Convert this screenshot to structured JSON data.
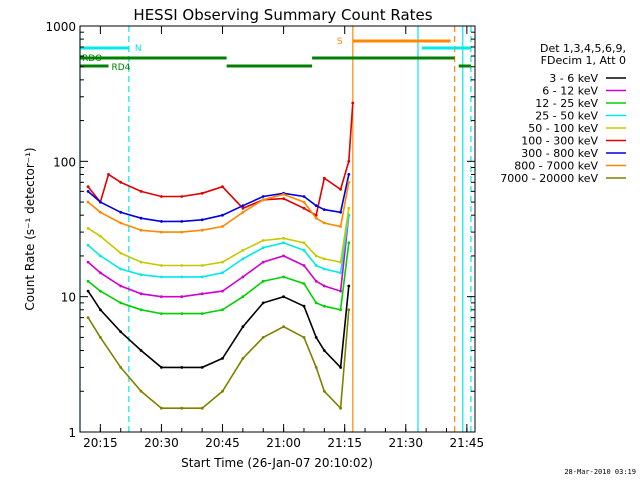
{
  "chart_data": {
    "type": "line",
    "title": "HESSI Observing Summary Count Rates",
    "xlabel": "Start Time (26-Jan-07 20:10:02)",
    "ylabel": "Count Rate (s⁻¹ detector⁻¹)",
    "yscale": "log",
    "ylim": [
      1,
      1000
    ],
    "xlim": [
      "20:10",
      "21:47"
    ],
    "x_ticks": [
      "20:15",
      "20:30",
      "20:45",
      "21:00",
      "21:15",
      "21:30",
      "21:45"
    ],
    "y_ticks": [
      "1",
      "10",
      "100",
      "1000"
    ],
    "grid": false,
    "legend_position": "right",
    "legend_header": [
      "Det 1,3,4,5,6,9,",
      "FDecim 1, Att 0"
    ],
    "footer_date": "28-Mar-2010 03:19",
    "series": [
      {
        "name": "3 - 6 keV",
        "color": "#000000",
        "x": [
          "20:12",
          "20:15",
          "20:20",
          "20:25",
          "20:30",
          "20:35",
          "20:40",
          "20:45",
          "20:50",
          "20:55",
          "21:00",
          "21:05",
          "21:08",
          "21:10",
          "21:14",
          "21:16"
        ],
        "values": [
          11,
          8,
          5.5,
          4,
          3,
          3,
          3,
          3.5,
          6,
          9,
          10,
          8.5,
          5,
          4,
          3,
          12
        ]
      },
      {
        "name": "6 - 12 keV",
        "color": "#d000d0",
        "x": [
          "20:12",
          "20:15",
          "20:20",
          "20:25",
          "20:30",
          "20:35",
          "20:40",
          "20:45",
          "20:50",
          "20:55",
          "21:00",
          "21:05",
          "21:08",
          "21:10",
          "21:14",
          "21:16"
        ],
        "values": [
          18,
          15,
          12,
          10.5,
          10,
          10,
          10.5,
          11,
          14,
          18,
          20,
          17,
          13,
          12,
          11,
          40
        ]
      },
      {
        "name": "12 - 25 keV",
        "color": "#00d000",
        "x": [
          "20:12",
          "20:15",
          "20:20",
          "20:25",
          "20:30",
          "20:35",
          "20:40",
          "20:45",
          "20:50",
          "20:55",
          "21:00",
          "21:05",
          "21:08",
          "21:10",
          "21:14",
          "21:16"
        ],
        "values": [
          13,
          11,
          9,
          8,
          7.5,
          7.5,
          7.5,
          8,
          10,
          13,
          14,
          12.5,
          9,
          8.5,
          8,
          25
        ]
      },
      {
        "name": "25 - 50 keV",
        "color": "#00e8e8",
        "x": [
          "20:12",
          "20:15",
          "20:20",
          "20:25",
          "20:30",
          "20:35",
          "20:40",
          "20:45",
          "20:50",
          "20:55",
          "21:00",
          "21:05",
          "21:08",
          "21:10",
          "21:14",
          "21:16"
        ],
        "values": [
          24,
          20,
          16,
          14.5,
          14,
          14,
          14,
          15,
          19,
          23,
          25,
          22,
          17,
          16,
          15,
          40
        ]
      },
      {
        "name": "50 - 100 keV",
        "color": "#c8c800",
        "x": [
          "20:12",
          "20:15",
          "20:20",
          "20:25",
          "20:30",
          "20:35",
          "20:40",
          "20:45",
          "20:50",
          "20:55",
          "21:00",
          "21:05",
          "21:08",
          "21:10",
          "21:14",
          "21:16"
        ],
        "values": [
          32,
          28,
          21,
          18,
          17,
          17,
          17,
          18,
          22,
          26,
          27,
          25,
          20,
          19,
          18,
          45
        ]
      },
      {
        "name": "100 - 300 keV",
        "color": "#e00000",
        "x": [
          "20:12",
          "20:15",
          "20:17",
          "20:20",
          "20:25",
          "20:30",
          "20:35",
          "20:40",
          "20:45",
          "20:50",
          "20:55",
          "21:00",
          "21:05",
          "21:08",
          "21:10",
          "21:14",
          "21:16",
          "21:17"
        ],
        "values": [
          65,
          50,
          80,
          70,
          60,
          55,
          55,
          58,
          65,
          45,
          52,
          53,
          45,
          40,
          75,
          62,
          100,
          270
        ]
      },
      {
        "name": "300 - 800 keV",
        "color": "#0000e0",
        "x": [
          "20:12",
          "20:15",
          "20:20",
          "20:25",
          "20:30",
          "20:35",
          "20:40",
          "20:45",
          "20:50",
          "20:55",
          "21:00",
          "21:05",
          "21:08",
          "21:10",
          "21:14",
          "21:16"
        ],
        "values": [
          60,
          50,
          42,
          38,
          36,
          36,
          37,
          40,
          47,
          55,
          58,
          55,
          47,
          44,
          42,
          80
        ]
      },
      {
        "name": "800 - 7000 keV",
        "color": "#ff8800",
        "x": [
          "20:12",
          "20:15",
          "20:20",
          "20:25",
          "20:30",
          "20:35",
          "20:40",
          "20:45",
          "20:50",
          "20:55",
          "21:00",
          "21:05",
          "21:08",
          "21:10",
          "21:14",
          "21:16"
        ],
        "values": [
          50,
          42,
          35,
          31,
          30,
          30,
          31,
          33,
          42,
          52,
          57,
          50,
          38,
          35,
          33,
          70
        ]
      },
      {
        "name": "7000 - 20000 keV",
        "color": "#808000",
        "x": [
          "20:12",
          "20:15",
          "20:20",
          "20:25",
          "20:30",
          "20:35",
          "20:40",
          "20:45",
          "20:50",
          "20:55",
          "21:00",
          "21:05",
          "21:08",
          "21:10",
          "21:14",
          "21:16"
        ],
        "values": [
          7,
          5,
          3,
          2,
          1.5,
          1.5,
          1.5,
          2,
          3.5,
          5,
          6,
          5,
          3,
          2,
          1.5,
          8
        ]
      }
    ],
    "flag_bars": [
      {
        "label": "N",
        "color": "#00e8e8",
        "segments": [
          [
            "20:10",
            "20:22"
          ],
          [
            "21:34",
            "21:46"
          ]
        ]
      },
      {
        "label": "S",
        "color": "#ff8800",
        "segments": [
          [
            "21:17",
            "21:41"
          ]
        ]
      },
      {
        "label": "RDO",
        "color": "#008000",
        "segments": [
          [
            "20:10",
            "20:46"
          ],
          [
            "21:07",
            "21:42"
          ]
        ]
      },
      {
        "label": "RD4",
        "color": "#008000",
        "segments": [
          [
            "20:10",
            "20:17"
          ],
          [
            "20:46",
            "21:07"
          ],
          [
            "21:43",
            "21:46"
          ]
        ]
      }
    ],
    "vertical_lines": [
      {
        "x": "20:10",
        "color": "#00e8e8",
        "style": "solid"
      },
      {
        "x": "20:22",
        "color": "#00e8e8",
        "style": "dashed"
      },
      {
        "x": "21:17",
        "color": "#ff8800",
        "style": "solid"
      },
      {
        "x": "21:33",
        "color": "#00e8e8",
        "style": "solid"
      },
      {
        "x": "21:42",
        "color": "#ff8800",
        "style": "dashed"
      },
      {
        "x": "21:44",
        "color": "#00e8e8",
        "style": "solid"
      },
      {
        "x": "21:46",
        "color": "#00e8e8",
        "style": "dashed"
      }
    ]
  }
}
